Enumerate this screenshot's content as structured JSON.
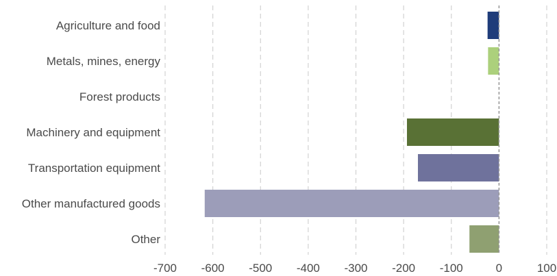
{
  "chart_data": {
    "type": "bar",
    "orientation": "horizontal",
    "title": "",
    "xlabel": "",
    "ylabel": "",
    "categories": [
      "Agriculture and food",
      "Metals, mines, energy",
      "Forest products",
      "Machinery and equipment",
      "Transportation equipment",
      "Other manufactured goods",
      "Other"
    ],
    "values": [
      -24,
      -23,
      0,
      -193,
      -170,
      -617,
      -62
    ],
    "colors": [
      "#1f3c7a",
      "#acd07c",
      "#9cbc62",
      "#597135",
      "#6f729c",
      "#9c9db9",
      "#8fa071"
    ],
    "xlim": [
      -700,
      100
    ],
    "xticks": [
      -700,
      -600,
      -500,
      -400,
      -300,
      -200,
      -100,
      0,
      100
    ],
    "xtick_labels": [
      "-700",
      "-600",
      "-500",
      "-400",
      "-300",
      "-200",
      "-100",
      "0",
      "100"
    ],
    "grid": true,
    "legend": "none"
  }
}
